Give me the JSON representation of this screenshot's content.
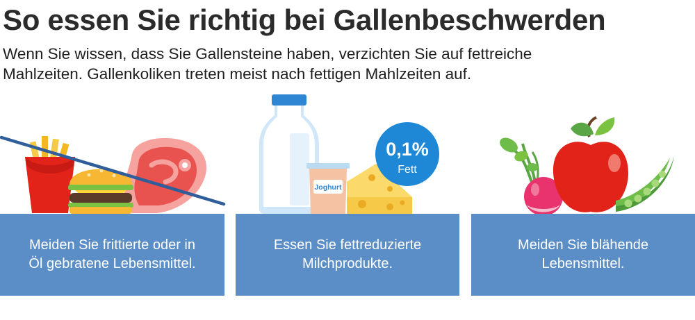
{
  "title": "So essen Sie richtig bei Gallenbeschwerden",
  "intro": {
    "line1": "Wenn Sie wissen, dass Sie Gallensteine haben, verzichten Sie auf fettreiche",
    "line2": "Mahlzeiten. Gallenkoliken treten meist nach fettigen Mahlzeiten auf."
  },
  "colors": {
    "panel": "#5b8ec7",
    "badge": "#1e88d6",
    "cross_line": "#2f5e9b",
    "title_text": "#2b2b2b"
  },
  "panels": [
    {
      "line1": "Meiden Sie frittierte oder in",
      "line2": "Öl gebratene Lebensmittel."
    },
    {
      "line1": "Essen Sie fettreduzierte",
      "line2": "Milchprodukte."
    },
    {
      "line1": "Meiden Sie blähende",
      "line2": "Lebensmittel."
    }
  ],
  "dairy": {
    "yogurt_label": "Joghurt",
    "fat_badge": {
      "value": "0,1%",
      "label": "Fett"
    }
  },
  "icons": {
    "fried_food": [
      "fries-icon",
      "burger-icon",
      "steak-icon",
      "cross-out-line"
    ],
    "dairy": [
      "milk-bottle-icon",
      "yogurt-cup-icon",
      "cheese-icon",
      "fat-badge"
    ],
    "bloating_food": [
      "radish-icon",
      "apple-icon",
      "pea-pod-icon"
    ]
  }
}
